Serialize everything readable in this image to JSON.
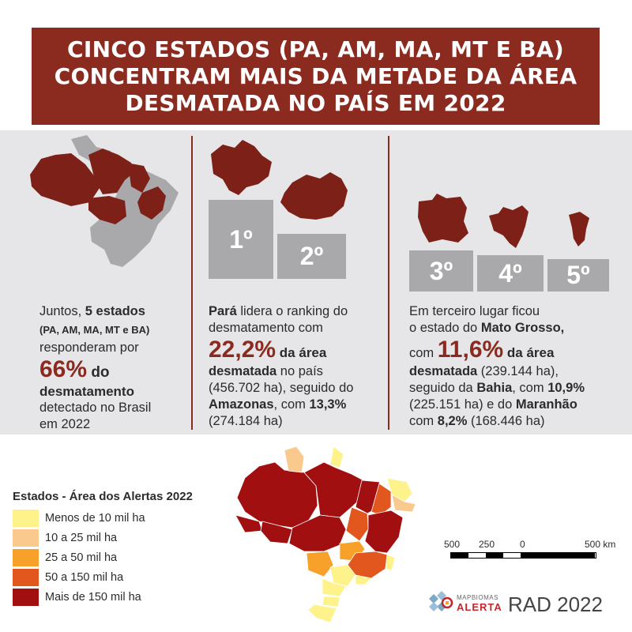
{
  "title": {
    "line1": "CINCO ESTADOS (PA, AM, MA, MT E BA)",
    "line2": "CONCENTRAM MAIS DA METADE DA ÁREA",
    "line3": "DESMATADA NO PAÍS EM 2022"
  },
  "col1": {
    "l1a": "Juntos, ",
    "l1b": "5 estados",
    "l2": "(PA, AM, MA, MT e BA)",
    "l3": "responderam por",
    "pct": "66%",
    "l4b": " do",
    "l5": "desmatamento",
    "l6": "detectado no Brasil",
    "l7": "em 2022"
  },
  "col2": {
    "rank1": "1º",
    "rank2": "2º",
    "l1a": "Pará",
    "l1b": " lidera o ranking do",
    "l2": "desmatamento com",
    "pct": "22,2%",
    "l3b": " da área",
    "l4a": "desmatada",
    "l4b": " no país",
    "l5": "(456.702 ha), seguido do",
    "l6a": "Amazonas",
    "l6b": ", com ",
    "l6c": "13,3%",
    "l7": "(274.184 ha)"
  },
  "col3": {
    "rank3": "3º",
    "rank4": "4º",
    "rank5": "5º",
    "l1": "Em terceiro lugar ficou",
    "l2a": "o estado do ",
    "l2b": "Mato Grosso,",
    "l3a": "com ",
    "pct": "11,6%",
    "l3b": " da área",
    "l4a": "desmatada",
    "l4b": " (239.144 ha),",
    "l5a": "seguido da ",
    "l5b": "Bahia",
    "l5c": ", com ",
    "l5d": "10,9%",
    "l6a": "(225.151 ha) e do ",
    "l6b": "Maranhão",
    "l7a": "com ",
    "l7b": "8,2%",
    "l7c": " (168.446 ha)"
  },
  "legend": {
    "title": "Estados - Área dos Alertas 2022",
    "items": [
      {
        "label": "Menos de 10 mil ha",
        "color": "#fdf38a"
      },
      {
        "label": "10 a 25 mil ha",
        "color": "#f9c98d"
      },
      {
        "label": "25 a 50 mil ha",
        "color": "#f7a12a"
      },
      {
        "label": "50 a 150 mil ha",
        "color": "#e2571e"
      },
      {
        "label": "Mais de 150 mil ha",
        "color": "#a20f10"
      }
    ]
  },
  "scale": {
    "t1": "500",
    "t2": "250",
    "t3": "0",
    "t4": "500 km"
  },
  "brand": {
    "top": "MAPBIOMAS",
    "bottom": "ALERTA",
    "rad": "RAD 2022"
  },
  "colors": {
    "accent": "#8b2a1f",
    "gray": "#a9a9ab",
    "panel": "#e6e6e8"
  }
}
